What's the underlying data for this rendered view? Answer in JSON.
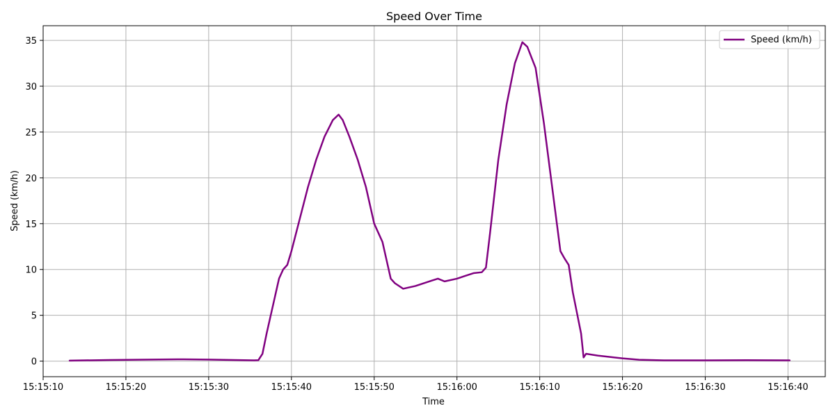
{
  "chart_data": {
    "type": "line",
    "title": "Speed Over Time",
    "xlabel": "Time",
    "ylabel": "Speed (km/h)",
    "x_ticks": [
      "15:15:10",
      "15:15:20",
      "15:15:30",
      "15:15:40",
      "15:15:50",
      "15:16:00",
      "15:16:10",
      "15:16:20",
      "15:16:30",
      "15:16:40"
    ],
    "y_ticks": [
      0,
      5,
      10,
      15,
      20,
      25,
      30,
      35
    ],
    "xlim": [
      "15:15:10",
      "15:16:44.5"
    ],
    "ylim": [
      -1.7,
      36.6
    ],
    "grid": true,
    "legend_position": "top-right",
    "series": [
      {
        "name": "Speed (km/h)",
        "color": "#800080",
        "points": [
          [
            "15:15:13.2",
            0.05
          ],
          [
            "15:15:15",
            0.08
          ],
          [
            "15:15:18",
            0.12
          ],
          [
            "15:15:21",
            0.15
          ],
          [
            "15:15:24",
            0.18
          ],
          [
            "15:15:27",
            0.2
          ],
          [
            "15:15:30",
            0.17
          ],
          [
            "15:15:33",
            0.12
          ],
          [
            "15:15:35.5",
            0.08
          ],
          [
            "15:15:36",
            0.1
          ],
          [
            "15:15:36.5",
            0.8
          ],
          [
            "15:15:37",
            3.0
          ],
          [
            "15:15:37.5",
            5.0
          ],
          [
            "15:15:38",
            7.0
          ],
          [
            "15:15:38.5",
            9.0
          ],
          [
            "15:15:39",
            10.0
          ],
          [
            "15:15:39.5",
            10.5
          ],
          [
            "15:15:40",
            12.0
          ],
          [
            "15:15:41",
            15.5
          ],
          [
            "15:15:42",
            19.0
          ],
          [
            "15:15:43",
            22.0
          ],
          [
            "15:15:44",
            24.5
          ],
          [
            "15:15:45",
            26.3
          ],
          [
            "15:15:45.7",
            26.9
          ],
          [
            "15:15:46.2",
            26.3
          ],
          [
            "15:15:47",
            24.5
          ],
          [
            "15:15:48",
            22.0
          ],
          [
            "15:15:49",
            19.0
          ],
          [
            "15:15:50",
            15.0
          ],
          [
            "15:15:51",
            13.0
          ],
          [
            "15:15:52",
            9.0
          ],
          [
            "15:15:52.5",
            8.5
          ],
          [
            "15:15:53.5",
            7.9
          ],
          [
            "15:15:55",
            8.2
          ],
          [
            "15:15:57",
            8.8
          ],
          [
            "15:15:57.7",
            9.0
          ],
          [
            "15:15:58.5",
            8.7
          ],
          [
            "15:16:00",
            9.0
          ],
          [
            "15:16:01",
            9.3
          ],
          [
            "15:16:02",
            9.6
          ],
          [
            "15:16:03",
            9.7
          ],
          [
            "15:16:03.5",
            10.2
          ],
          [
            "15:16:04",
            14.0
          ],
          [
            "15:16:05",
            22.0
          ],
          [
            "15:16:06",
            28.0
          ],
          [
            "15:16:07",
            32.5
          ],
          [
            "15:16:07.9",
            34.8
          ],
          [
            "15:16:08.5",
            34.3
          ],
          [
            "15:16:09.5",
            32.0
          ],
          [
            "15:16:10.5",
            26.0
          ],
          [
            "15:16:11.5",
            19.0
          ],
          [
            "15:16:12.5",
            12.0
          ],
          [
            "15:16:13",
            11.2
          ],
          [
            "15:16:13.5",
            10.5
          ],
          [
            "15:16:14",
            7.5
          ],
          [
            "15:16:15",
            3.0
          ],
          [
            "15:16:15.3",
            0.4
          ],
          [
            "15:16:15.6",
            0.8
          ],
          [
            "15:16:17",
            0.6
          ],
          [
            "15:16:20",
            0.3
          ],
          [
            "15:16:22",
            0.15
          ],
          [
            "15:16:25",
            0.08
          ],
          [
            "15:16:30",
            0.08
          ],
          [
            "15:16:35",
            0.1
          ],
          [
            "15:16:40.2",
            0.08
          ]
        ]
      }
    ]
  }
}
